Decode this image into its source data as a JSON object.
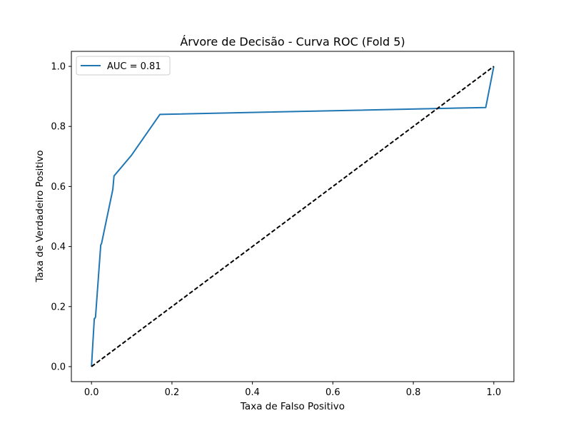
{
  "chart_data": {
    "type": "line",
    "title": "Árvore de Decisão - Curva ROC (Fold 5)",
    "xlabel": "Taxa de Falso Positivo",
    "ylabel": "Taxa de Verdadeiro Positivo",
    "xlim": [
      -0.05,
      1.05
    ],
    "ylim": [
      -0.05,
      1.05
    ],
    "xticks": [
      0.0,
      0.2,
      0.4,
      0.6,
      0.8,
      1.0
    ],
    "yticks": [
      0.0,
      0.2,
      0.4,
      0.6,
      0.8,
      1.0
    ],
    "xtick_labels": [
      "0.0",
      "0.2",
      "0.4",
      "0.6",
      "0.8",
      "1.0"
    ],
    "ytick_labels": [
      "0.0",
      "0.2",
      "0.4",
      "0.6",
      "0.8",
      "1.0"
    ],
    "grid": false,
    "legend_position": "top-left",
    "series": [
      {
        "name": "AUC = 0.81",
        "color": "#1f77b4",
        "style": "solid",
        "x": [
          0.0,
          0.007,
          0.008,
          0.01,
          0.023,
          0.025,
          0.053,
          0.056,
          0.1,
          0.17,
          0.98,
          1.0
        ],
        "y": [
          0.0,
          0.16,
          0.16,
          0.165,
          0.405,
          0.41,
          0.59,
          0.635,
          0.705,
          0.84,
          0.863,
          1.0
        ]
      },
      {
        "name": "",
        "color": "#000000",
        "style": "dashed",
        "x": [
          0.0,
          1.0
        ],
        "y": [
          0.0,
          1.0
        ]
      }
    ]
  }
}
